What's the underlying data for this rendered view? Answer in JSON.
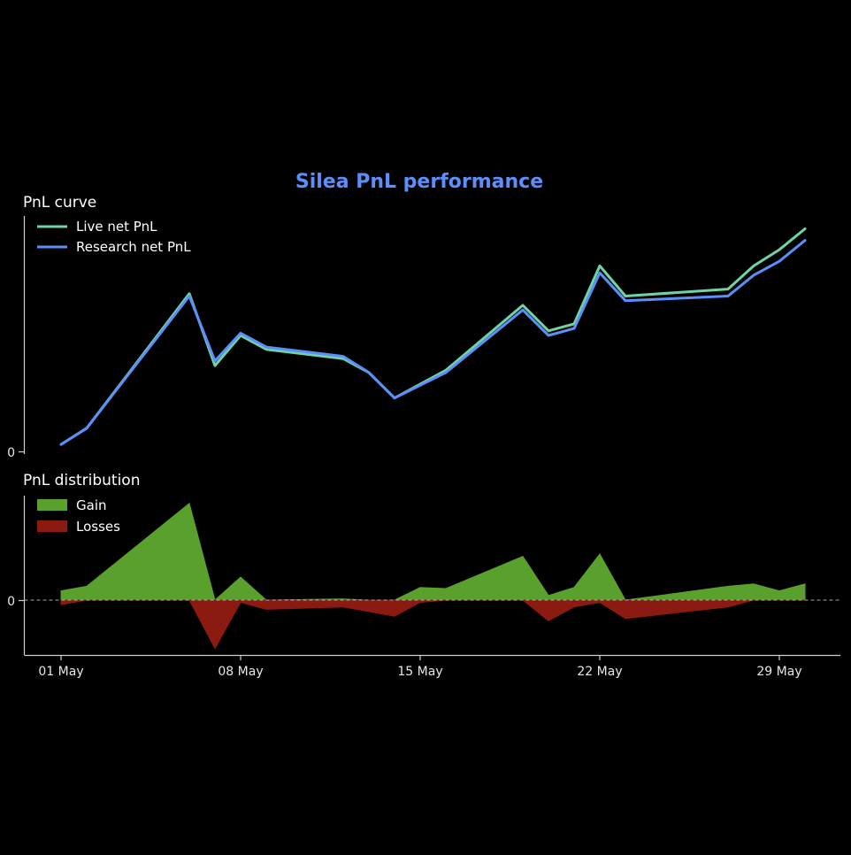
{
  "title": "Silea PnL performance",
  "colors": {
    "background": "#000000",
    "title": "#5b8ff9",
    "live": "#6fd3a6",
    "research": "#5b8ff9",
    "gain": "#5aa02c",
    "losses": "#8b1a10",
    "zero_line": "#aaaaaa"
  },
  "chart_data": [
    {
      "type": "line",
      "title": "PnL curve",
      "ytick_labels": [
        "0"
      ],
      "ylim": [
        0,
        100
      ],
      "legend_position": "top-left",
      "x": [
        "2024-05-01",
        "2024-05-02",
        "2024-05-06",
        "2024-05-07",
        "2024-05-08",
        "2024-05-09",
        "2024-05-12",
        "2024-05-13",
        "2024-05-14",
        "2024-05-16",
        "2024-05-19",
        "2024-05-20",
        "2024-05-21",
        "2024-05-22",
        "2024-05-23",
        "2024-05-27",
        "2024-05-28",
        "2024-05-29",
        "2024-05-30"
      ],
      "series": [
        {
          "name": "Live net PnL",
          "values": [
            3,
            10,
            68,
            37,
            50,
            44,
            40,
            34,
            23,
            35,
            63,
            52,
            55,
            80,
            67,
            70,
            80,
            87,
            96
          ]
        },
        {
          "name": "Research net PnL",
          "values": [
            3,
            10,
            67,
            39,
            51,
            45,
            41,
            34,
            23,
            34,
            61,
            50,
            53,
            77,
            65,
            67,
            76,
            82,
            91
          ]
        }
      ]
    },
    {
      "type": "area",
      "title": "PnL distribution",
      "ytick_labels": [
        "0"
      ],
      "ylim": [
        -22,
        46
      ],
      "legend_position": "top-left",
      "x_tick_labels": [
        "01 May",
        "08 May",
        "15 May",
        "22 May",
        "29 May"
      ],
      "x": [
        "2024-05-01",
        "2024-05-02",
        "2024-05-06",
        "2024-05-07",
        "2024-05-08",
        "2024-05-09",
        "2024-05-12",
        "2024-05-13",
        "2024-05-14",
        "2024-05-15",
        "2024-05-16",
        "2024-05-19",
        "2024-05-20",
        "2024-05-21",
        "2024-05-22",
        "2024-05-23",
        "2024-05-27",
        "2024-05-28",
        "2024-05-29",
        "2024-05-30"
      ],
      "series": [
        {
          "name": "Gain",
          "values": [
            4,
            6,
            42,
            0,
            10,
            0,
            0.5,
            0,
            0,
            5.5,
            5,
            19,
            2,
            5.5,
            20,
            0,
            6,
            7,
            4,
            7
          ]
        },
        {
          "name": "Losses",
          "values": [
            -2,
            0,
            0,
            -21,
            -1,
            -4,
            -3,
            -5,
            -7,
            -1,
            0,
            0,
            -9,
            -3,
            -1,
            -8,
            -3,
            0,
            0,
            0
          ]
        }
      ]
    }
  ]
}
